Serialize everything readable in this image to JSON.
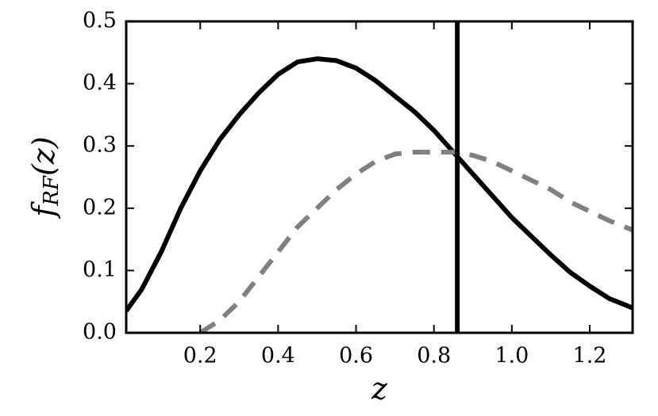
{
  "chart_data": {
    "type": "line",
    "xlabel": "z",
    "ylabel": {
      "main": "f",
      "sub": "RF",
      "rest": "(z)"
    },
    "xlim": [
      0.01,
      1.31
    ],
    "ylim": [
      0,
      0.5
    ],
    "xticks": [
      0.2,
      0.4,
      0.6,
      0.8,
      {
        "value": 1,
        "label": "1.0"
      },
      1.2
    ],
    "yticks": [
      {
        "value": 0,
        "label": "0.0"
      },
      0.1,
      0.2,
      0.3,
      0.4,
      0.5
    ],
    "vline": {
      "x": 0.86,
      "color": "#000000"
    },
    "series": [
      {
        "color": "#000000",
        "dash": false,
        "x": [
          0.01,
          0.05,
          0.1,
          0.15,
          0.2,
          0.25,
          0.3,
          0.35,
          0.4,
          0.45,
          0.5,
          0.55,
          0.6,
          0.65,
          0.7,
          0.75,
          0.8,
          0.85,
          0.9,
          0.95,
          1.0,
          1.05,
          1.1,
          1.15,
          1.2,
          1.25,
          1.31
        ],
        "values": [
          0.035,
          0.07,
          0.13,
          0.2,
          0.26,
          0.31,
          0.35,
          0.385,
          0.415,
          0.435,
          0.44,
          0.437,
          0.425,
          0.405,
          0.38,
          0.355,
          0.325,
          0.29,
          0.255,
          0.22,
          0.185,
          0.155,
          0.125,
          0.097,
          0.075,
          0.055,
          0.04
        ]
      },
      {
        "color": "#808080",
        "dash": true,
        "x": [
          0.2,
          0.25,
          0.3,
          0.35,
          0.4,
          0.45,
          0.5,
          0.55,
          0.6,
          0.65,
          0.7,
          0.75,
          0.8,
          0.85,
          0.9,
          0.95,
          1.0,
          1.05,
          1.1,
          1.15,
          1.2,
          1.25,
          1.31
        ],
        "values": [
          0.0,
          0.02,
          0.05,
          0.09,
          0.13,
          0.17,
          0.2,
          0.23,
          0.255,
          0.275,
          0.287,
          0.29,
          0.29,
          0.29,
          0.285,
          0.275,
          0.26,
          0.245,
          0.23,
          0.21,
          0.195,
          0.18,
          0.165
        ]
      }
    ]
  }
}
